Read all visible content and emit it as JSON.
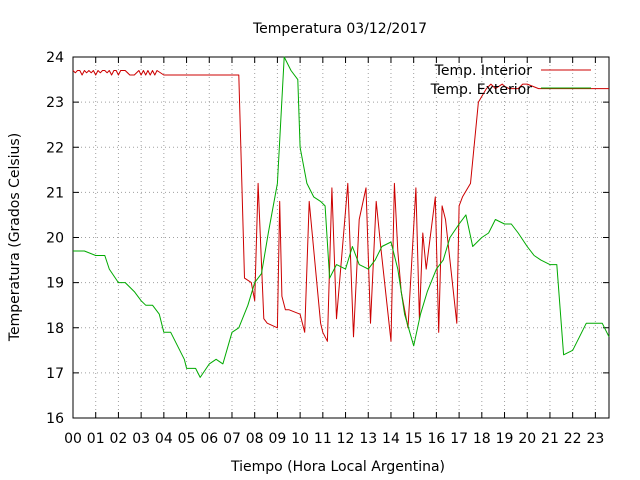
{
  "chart_data": {
    "type": "line",
    "title": "Temperatura 03/12/2017",
    "xlabel": "Tiempo (Hora Local Argentina)",
    "ylabel": "Temperatura (Grados Celsius)",
    "xlim": [
      0,
      23.6
    ],
    "ylim": [
      16,
      24
    ],
    "x_ticks": [
      "00",
      "01",
      "02",
      "03",
      "04",
      "05",
      "06",
      "07",
      "08",
      "09",
      "10",
      "11",
      "12",
      "13",
      "14",
      "15",
      "16",
      "17",
      "18",
      "19",
      "20",
      "21",
      "22",
      "23"
    ],
    "y_ticks": [
      "16",
      "17",
      "18",
      "19",
      "20",
      "21",
      "22",
      "23",
      "24"
    ],
    "grid": true,
    "legend_position": "top-right",
    "series": [
      {
        "name": "Temp. Interior",
        "color": "#cc0000",
        "x": [
          0.0,
          0.1,
          0.2,
          0.3,
          0.4,
          0.5,
          0.6,
          0.7,
          0.8,
          0.9,
          1.0,
          1.1,
          1.2,
          1.3,
          1.4,
          1.5,
          1.6,
          1.7,
          1.8,
          1.9,
          2.0,
          2.1,
          2.2,
          2.3,
          2.5,
          2.7,
          2.9,
          3.0,
          3.1,
          3.2,
          3.3,
          3.4,
          3.5,
          3.6,
          3.7,
          4.0,
          5.0,
          6.0,
          7.0,
          7.3,
          7.55,
          7.85,
          8.0,
          8.15,
          8.4,
          8.55,
          9.0,
          9.1,
          9.2,
          9.35,
          9.5,
          10.0,
          10.2,
          10.4,
          10.9,
          11.0,
          11.2,
          11.4,
          11.6,
          11.9,
          12.1,
          12.35,
          12.6,
          12.9,
          13.1,
          13.35,
          13.55,
          14.0,
          14.15,
          14.3,
          14.45,
          14.75,
          15.1,
          15.25,
          15.4,
          15.55,
          15.95,
          16.1,
          16.25,
          16.4,
          16.9,
          17.0,
          17.15,
          17.5,
          17.85,
          18.2,
          18.4,
          18.6,
          18.9,
          19.0,
          19.2,
          19.4,
          19.6,
          19.8,
          20.0,
          20.5,
          21.0,
          21.5,
          22.0,
          22.5,
          23.0,
          23.6
        ],
        "values": [
          23.7,
          23.65,
          23.7,
          23.7,
          23.6,
          23.7,
          23.65,
          23.7,
          23.65,
          23.7,
          23.6,
          23.7,
          23.65,
          23.7,
          23.7,
          23.65,
          23.7,
          23.6,
          23.7,
          23.7,
          23.6,
          23.7,
          23.7,
          23.7,
          23.6,
          23.6,
          23.7,
          23.6,
          23.7,
          23.6,
          23.7,
          23.6,
          23.7,
          23.6,
          23.7,
          23.6,
          23.6,
          23.6,
          23.6,
          23.6,
          19.1,
          19.0,
          18.6,
          21.2,
          18.2,
          18.1,
          18.0,
          20.8,
          18.7,
          18.4,
          18.4,
          18.3,
          17.9,
          20.8,
          18.1,
          17.9,
          17.7,
          21.1,
          18.2,
          20.0,
          21.2,
          17.8,
          20.4,
          21.1,
          18.1,
          20.8,
          19.8,
          17.7,
          21.2,
          19.7,
          18.8,
          18.0,
          21.1,
          18.2,
          20.1,
          19.3,
          20.9,
          17.9,
          20.7,
          20.4,
          18.1,
          20.7,
          20.9,
          21.2,
          23.0,
          23.3,
          23.4,
          23.3,
          23.4,
          23.35,
          23.3,
          23.3,
          23.3,
          23.4,
          23.4,
          23.3,
          23.3,
          23.3,
          23.3,
          23.3,
          23.3,
          23.3
        ]
      },
      {
        "name": "Temp. Exterior",
        "color": "#00aa00",
        "x": [
          0.0,
          0.5,
          1.0,
          1.4,
          1.6,
          2.0,
          2.3,
          2.7,
          3.0,
          3.2,
          3.5,
          3.8,
          4.0,
          4.3,
          4.6,
          4.9,
          5.0,
          5.2,
          5.4,
          5.6,
          6.0,
          6.3,
          6.6,
          7.0,
          7.3,
          7.7,
          8.0,
          8.3,
          8.6,
          9.0,
          9.3,
          9.6,
          9.9,
          10.0,
          10.3,
          10.6,
          10.9,
          11.1,
          11.3,
          11.6,
          12.0,
          12.3,
          12.6,
          13.0,
          13.3,
          13.6,
          14.0,
          14.3,
          14.6,
          15.0,
          15.3,
          15.6,
          16.0,
          16.3,
          16.6,
          17.0,
          17.3,
          17.6,
          18.0,
          18.3,
          18.6,
          19.0,
          19.3,
          19.6,
          20.0,
          20.3,
          20.6,
          21.0,
          21.3,
          21.6,
          22.0,
          22.3,
          22.6,
          23.0,
          23.3,
          23.6
        ],
        "values": [
          19.7,
          19.7,
          19.6,
          19.6,
          19.3,
          19.0,
          19.0,
          18.8,
          18.6,
          18.5,
          18.5,
          18.3,
          17.9,
          17.9,
          17.6,
          17.3,
          17.1,
          17.1,
          17.1,
          16.9,
          17.2,
          17.3,
          17.2,
          17.9,
          18.0,
          18.5,
          19.0,
          19.2,
          20.1,
          21.2,
          24.0,
          23.7,
          23.5,
          22.0,
          21.2,
          20.9,
          20.8,
          20.7,
          19.1,
          19.4,
          19.3,
          19.8,
          19.4,
          19.3,
          19.5,
          19.8,
          19.9,
          19.3,
          18.3,
          17.6,
          18.3,
          18.8,
          19.3,
          19.5,
          20.0,
          20.3,
          20.5,
          19.8,
          20.0,
          20.1,
          20.4,
          20.3,
          20.3,
          20.1,
          19.8,
          19.6,
          19.5,
          19.4,
          19.4,
          17.4,
          17.5,
          17.8,
          18.1,
          18.1,
          18.1,
          17.8
        ]
      }
    ]
  }
}
